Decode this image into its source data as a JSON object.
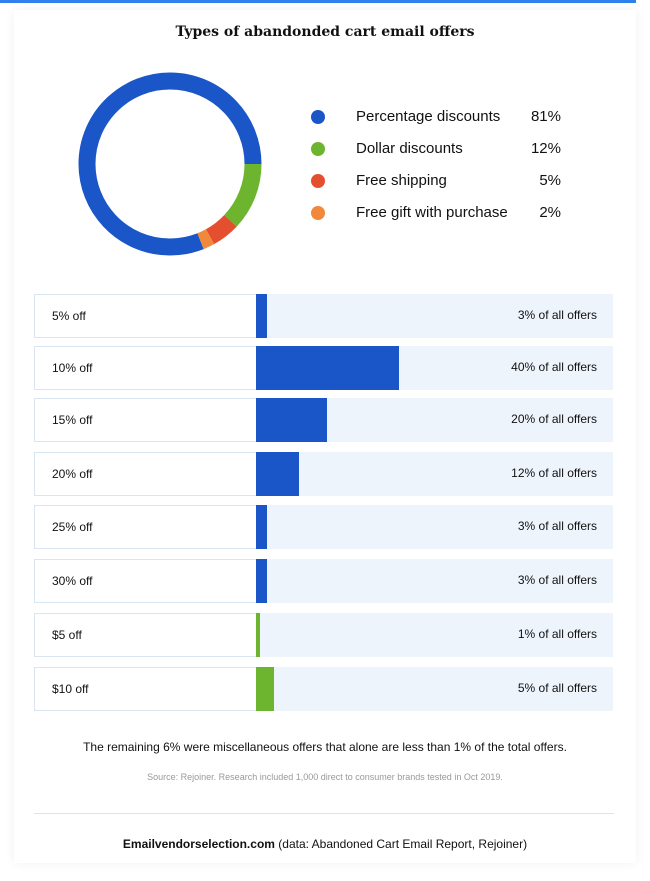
{
  "colors": {
    "accent_bar": "#2f80ed",
    "blue": "#1a56c7",
    "green": "#6db52f",
    "red": "#e4502f",
    "orange": "#f2883a",
    "track": "#eef4fb",
    "label_border": "#d9e5f1"
  },
  "chart_data": [
    {
      "type": "pie",
      "title": "Types of abandonded cart email offers",
      "donut": true,
      "slices": [
        {
          "label": "Percentage discounts",
          "value": 81,
          "display": "81%",
          "color": "#1a56c7"
        },
        {
          "label": "Dollar discounts",
          "value": 12,
          "display": "12%",
          "color": "#6db52f"
        },
        {
          "label": "Free shipping",
          "value": 5,
          "display": "5%",
          "color": "#e4502f"
        },
        {
          "label": "Free gift with purchase",
          "value": 2,
          "display": "2%",
          "color": "#f2883a"
        }
      ],
      "legend_position": "right"
    },
    {
      "type": "bar",
      "orientation": "horizontal",
      "unit": "% of all offers",
      "xlim": [
        0,
        100
      ],
      "bars": [
        {
          "label": "5% off",
          "value": 3,
          "display": "3% of all offers",
          "color": "#1a56c7"
        },
        {
          "label": "10% off",
          "value": 40,
          "display": "40% of all offers",
          "color": "#1a56c7"
        },
        {
          "label": "15% off",
          "value": 20,
          "display": "20% of all offers",
          "color": "#1a56c7"
        },
        {
          "label": "20% off",
          "value": 12,
          "display": "12% of all offers",
          "color": "#1a56c7"
        },
        {
          "label": "25% off",
          "value": 3,
          "display": "3% of all offers",
          "color": "#1a56c7"
        },
        {
          "label": "30% off",
          "value": 3,
          "display": "3% of all offers",
          "color": "#1a56c7"
        },
        {
          "label": "$5 off",
          "value": 1,
          "display": "1% of all offers",
          "color": "#6db52f"
        },
        {
          "label": "$10 off",
          "value": 5,
          "display": "5% of all offers",
          "color": "#6db52f"
        }
      ]
    }
  ],
  "note": "The remaining 6% were miscellaneous offers that alone are less than 1% of the total offers.",
  "source": "Source: Rejoiner. Research included 1,000 direct to consumer brands tested in Oct 2019.",
  "footer": {
    "brand": "Emailvendorselection.com",
    "rest": " (data: Abandoned Cart Email Report, Rejoiner)"
  }
}
